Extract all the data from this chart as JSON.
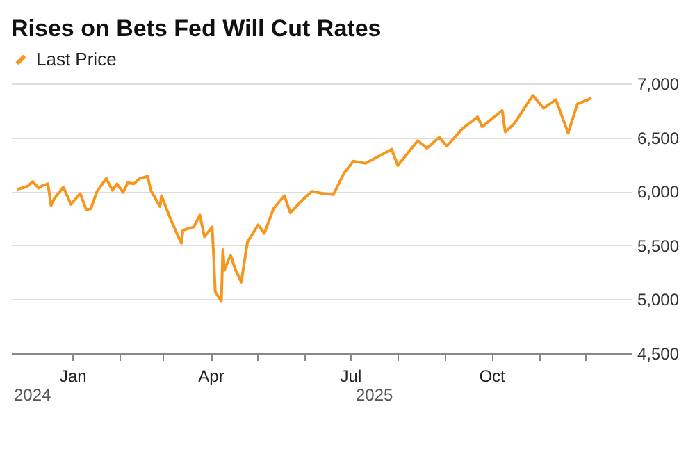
{
  "chart_data": {
    "type": "line",
    "title": "Rises on Bets Fed Will Cut Rates",
    "x": [
      "2024-11-26",
      "2024-11-29",
      "2024-12-03",
      "2024-12-06",
      "2024-12-10",
      "2024-12-12",
      "2024-12-16",
      "2024-12-18",
      "2024-12-20",
      "2024-12-26",
      "2024-12-31",
      "2025-01-06",
      "2025-01-10",
      "2025-01-13",
      "2025-01-17",
      "2025-01-23",
      "2025-01-27",
      "2025-01-30",
      "2025-02-03",
      "2025-02-06",
      "2025-02-10",
      "2025-02-14",
      "2025-02-19",
      "2025-02-21",
      "2025-02-27",
      "2025-02-28",
      "2025-03-06",
      "2025-03-10",
      "2025-03-13",
      "2025-03-14",
      "2025-03-21",
      "2025-03-25",
      "2025-03-28",
      "2025-04-02",
      "2025-04-03",
      "2025-04-04",
      "2025-04-08",
      "2025-04-09",
      "2025-04-10",
      "2025-04-14",
      "2025-04-17",
      "2025-04-21",
      "2025-04-25",
      "2025-05-02",
      "2025-05-06",
      "2025-05-12",
      "2025-05-19",
      "2025-05-23",
      "2025-05-30",
      "2025-06-06",
      "2025-06-13",
      "2025-06-20",
      "2025-06-27",
      "2025-07-03",
      "2025-07-11",
      "2025-07-28",
      "2025-08-01",
      "2025-08-14",
      "2025-08-20",
      "2025-08-28",
      "2025-09-02",
      "2025-09-12",
      "2025-09-22",
      "2025-09-25",
      "2025-10-08",
      "2025-10-10",
      "2025-10-16",
      "2025-10-28",
      "2025-11-04",
      "2025-11-12",
      "2025-11-20",
      "2025-11-26",
      "2025-12-03",
      "2025-12-05"
    ],
    "series": [
      {
        "name": "Last Price",
        "color": "#f7961e",
        "values": [
          6020,
          6030,
          6050,
          6090,
          6030,
          6050,
          6070,
          5870,
          5930,
          6040,
          5880,
          5980,
          5830,
          5840,
          6000,
          6120,
          6010,
          6070,
          5990,
          6080,
          6070,
          6120,
          6140,
          6010,
          5860,
          5960,
          5740,
          5610,
          5520,
          5640,
          5670,
          5780,
          5580,
          5670,
          5400,
          5070,
          4980,
          5460,
          5270,
          5410,
          5280,
          5160,
          5530,
          5690,
          5610,
          5840,
          5960,
          5800,
          5910,
          6000,
          5980,
          5970,
          6170,
          6280,
          6260,
          6390,
          6240,
          6470,
          6400,
          6500,
          6420,
          6580,
          6690,
          6600,
          6750,
          6550,
          6630,
          6890,
          6770,
          6850,
          6540,
          6810,
          6850,
          6870
        ]
      }
    ],
    "xlim": [
      "2024-11-22",
      "2025-12-31"
    ],
    "xticks": [
      {
        "value": "2025-01-01",
        "label": "Jan"
      },
      {
        "value": "2025-02-01",
        "label": null
      },
      {
        "value": "2025-03-01",
        "label": null
      },
      {
        "value": "2025-04-01",
        "label": "Apr"
      },
      {
        "value": "2025-05-01",
        "label": null
      },
      {
        "value": "2025-06-01",
        "label": null
      },
      {
        "value": "2025-07-01",
        "label": "Jul"
      },
      {
        "value": "2025-08-01",
        "label": null
      },
      {
        "value": "2025-09-01",
        "label": null
      },
      {
        "value": "2025-10-01",
        "label": "Oct"
      },
      {
        "value": "2025-11-01",
        "label": null
      },
      {
        "value": "2025-12-01",
        "label": null
      }
    ],
    "ylim": [
      4500,
      7000
    ],
    "yticks": [
      {
        "value": 4500,
        "label": "4,500"
      },
      {
        "value": 5000,
        "label": "5,000"
      },
      {
        "value": 5500,
        "label": "5,500"
      },
      {
        "value": 6000,
        "label": "6,000"
      },
      {
        "value": 6500,
        "label": "6,500"
      },
      {
        "value": 7000,
        "label": "7,000"
      }
    ],
    "annotations": [
      "2024",
      "2025"
    ],
    "grid": "y",
    "legend": "top left",
    "line_style": "solid"
  }
}
